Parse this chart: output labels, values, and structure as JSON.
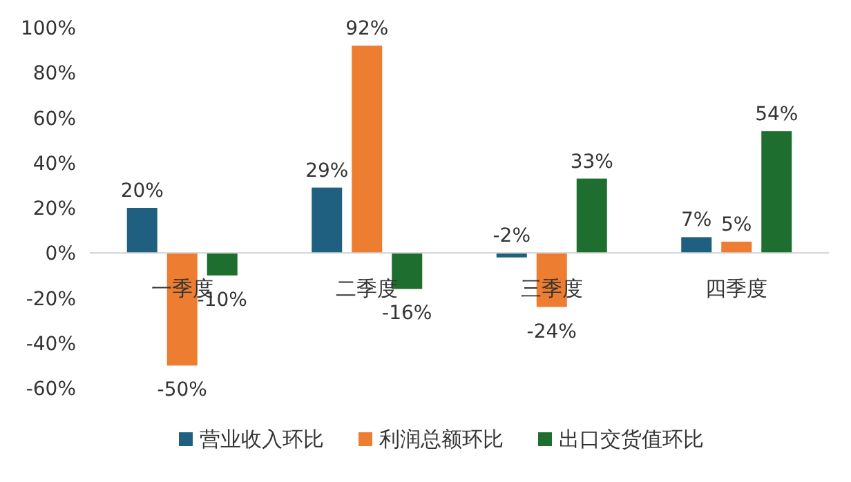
{
  "chart_data": {
    "type": "bar",
    "categories": [
      "一季度",
      "二季度",
      "三季度",
      "四季度"
    ],
    "series": [
      {
        "name": "营业收入环比",
        "color": "#1f5f7f",
        "values": [
          20,
          29,
          -2,
          7
        ],
        "value_labels": [
          "20%",
          "29%",
          "-2%",
          "7%"
        ]
      },
      {
        "name": "利润总额环比",
        "color": "#ed7d31",
        "values": [
          -50,
          92,
          -24,
          5
        ],
        "value_labels": [
          "-50%",
          "92%",
          "-24%",
          "5%"
        ]
      },
      {
        "name": "出口交货值环比",
        "color": "#1e6e30",
        "values": [
          -10,
          -16,
          33,
          54
        ],
        "value_labels": [
          "-10%",
          "-16%",
          "33%",
          "54%"
        ]
      }
    ],
    "ylim": [
      -60,
      100
    ],
    "yticks": [
      {
        "value": -60,
        "label": "-60%"
      },
      {
        "value": -40,
        "label": "-40%"
      },
      {
        "value": -20,
        "label": "-20%"
      },
      {
        "value": 0,
        "label": "0%"
      },
      {
        "value": 20,
        "label": "20%"
      },
      {
        "value": 40,
        "label": "40%"
      },
      {
        "value": 60,
        "label": "60%"
      },
      {
        "value": 80,
        "label": "80%"
      },
      {
        "value": 100,
        "label": "100%"
      }
    ],
    "legend": "bottom"
  }
}
